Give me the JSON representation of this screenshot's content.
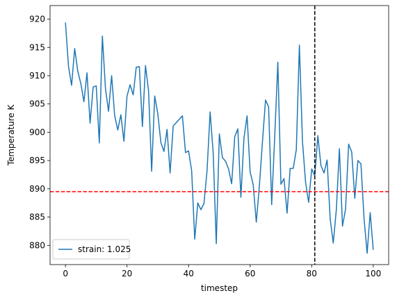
{
  "chart_data": {
    "type": "line",
    "title": "",
    "xlabel": "timestep",
    "ylabel": "Temperature K",
    "xlim": [
      -5,
      105
    ],
    "ylim": [
      876.6,
      922.4
    ],
    "xticks": [
      0,
      20,
      40,
      60,
      80,
      100
    ],
    "yticks": [
      880,
      885,
      890,
      895,
      900,
      905,
      910,
      915,
      920
    ],
    "legend_placement": "lower-left",
    "grid": false,
    "series": [
      {
        "name": "strain: 1.025",
        "color": "#1f77b4",
        "x": [
          0,
          1,
          2,
          3,
          4,
          5,
          6,
          7,
          8,
          9,
          10,
          11,
          12,
          13,
          14,
          15,
          16,
          17,
          18,
          19,
          20,
          21,
          22,
          23,
          24,
          25,
          26,
          27,
          28,
          29,
          30,
          31,
          32,
          33,
          34,
          35,
          36,
          37,
          38,
          39,
          40,
          41,
          42,
          43,
          44,
          45,
          46,
          47,
          48,
          49,
          50,
          51,
          52,
          53,
          54,
          55,
          56,
          57,
          58,
          59,
          60,
          61,
          62,
          63,
          64,
          65,
          66,
          67,
          68,
          69,
          70,
          71,
          72,
          73,
          74,
          75,
          76,
          77,
          78,
          79,
          80,
          81,
          82,
          83,
          84,
          85,
          86,
          87,
          88,
          89,
          90,
          91,
          92,
          93,
          94,
          95,
          96,
          97,
          98,
          99,
          100
        ],
        "y": [
          919.4,
          911.6,
          908.3,
          914.8,
          910.8,
          908.6,
          905.4,
          910.5,
          901.6,
          908.0,
          908.2,
          898.1,
          917.0,
          907.7,
          903.7,
          910.0,
          902.9,
          900.4,
          903.1,
          898.4,
          906.4,
          908.4,
          906.6,
          911.5,
          911.6,
          901.0,
          911.8,
          907.3,
          893.1,
          906.4,
          903.3,
          898.2,
          896.6,
          900.5,
          892.8,
          901.1,
          901.7,
          902.3,
          902.9,
          896.4,
          896.7,
          893.2,
          881.1,
          887.5,
          886.3,
          887.4,
          893.2,
          903.6,
          896.3,
          880.3,
          899.7,
          895.5,
          894.9,
          893.5,
          890.9,
          899.2,
          900.6,
          888.5,
          899.0,
          902.9,
          893.0,
          890.7,
          884.1,
          890.5,
          898.3,
          905.7,
          904.5,
          887.2,
          899.4,
          912.4,
          890.8,
          891.8,
          885.7,
          893.6,
          893.6,
          896.9,
          915.4,
          898.4,
          891.2,
          887.6,
          893.5,
          892.3,
          899.4,
          894.1,
          892.8,
          895.1,
          884.7,
          880.4,
          886.3,
          897.1,
          883.4,
          886.4,
          897.9,
          896.5,
          888.3,
          895.0,
          894.4,
          884.8,
          878.6,
          885.8,
          879.2
        ]
      }
    ],
    "hline": {
      "y": 889.5,
      "color": "#ff0000",
      "style": "dashed"
    },
    "vline": {
      "x": 81,
      "color": "#000000",
      "style": "dashed"
    }
  }
}
